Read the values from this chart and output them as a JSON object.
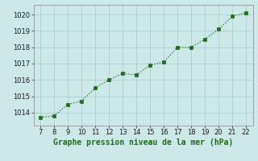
{
  "x": [
    7,
    8,
    9,
    10,
    11,
    12,
    13,
    14,
    15,
    16,
    17,
    18,
    19,
    20,
    21,
    22
  ],
  "y": [
    1013.7,
    1013.8,
    1014.5,
    1014.7,
    1015.5,
    1016.0,
    1016.4,
    1016.3,
    1016.9,
    1017.1,
    1018.0,
    1018.0,
    1018.5,
    1019.1,
    1019.9,
    1020.1
  ],
  "line_color": "#1f6b1f",
  "marker_color": "#1f6b1f",
  "bg_color": "#cce8e8",
  "grid_color": "#aacece",
  "title": "Graphe pression niveau de la mer (hPa)",
  "title_fontsize": 7,
  "tick_fontsize": 6,
  "xlim": [
    6.5,
    22.5
  ],
  "ylim": [
    1013.2,
    1020.6
  ],
  "yticks": [
    1014,
    1015,
    1016,
    1017,
    1018,
    1019,
    1020
  ],
  "xticks": [
    7,
    8,
    9,
    10,
    11,
    12,
    13,
    14,
    15,
    16,
    17,
    18,
    19,
    20,
    21,
    22
  ]
}
